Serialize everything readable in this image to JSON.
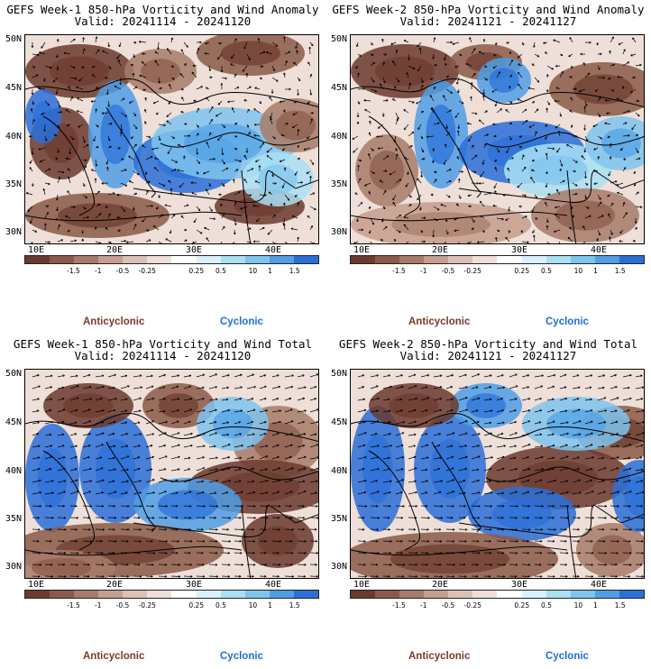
{
  "panels": [
    {
      "title": "GEFS Week-1 850-hPa Vorticity and Wind Anomaly",
      "valid": "Valid: 20241114 - 20241120"
    },
    {
      "title": "GEFS Week-2 850-hPa Vorticity and Wind Anomaly",
      "valid": "Valid: 20241121 - 20241127"
    },
    {
      "title": "GEFS Week-1 850-hPa Vorticity and Wind Total",
      "valid": "Valid: 20241114 - 20241120"
    },
    {
      "title": "GEFS Week-2 850-hPa Vorticity and Wind Total",
      "valid": "Valid: 20241121 - 20241127"
    }
  ],
  "lat_labels": [
    "50N",
    "45N",
    "40N",
    "35N",
    "30N"
  ],
  "lon_labels": [
    "10E",
    "20E",
    "30E",
    "40E"
  ],
  "colorbar": {
    "colors": [
      "#6b3a2e",
      "#8a5a48",
      "#a77b68",
      "#c69e8d",
      "#dcc2b6",
      "#eedfd8",
      "#ffffff",
      "#d8f2fb",
      "#a9e0f4",
      "#7fc4ee",
      "#4f9fe6",
      "#2a6fd8"
    ],
    "ticks": [
      "-1.5",
      "-1",
      "-0.5",
      "-0.25",
      "0.25",
      "0.5",
      "1",
      "1.5"
    ],
    "center_label": "10"
  },
  "legend": {
    "anticyclonic": "Anticyclonic",
    "cyclonic": "Cyclonic"
  },
  "colors": {
    "brown": "#7a3a2a",
    "blue": "#1f6fd6"
  }
}
